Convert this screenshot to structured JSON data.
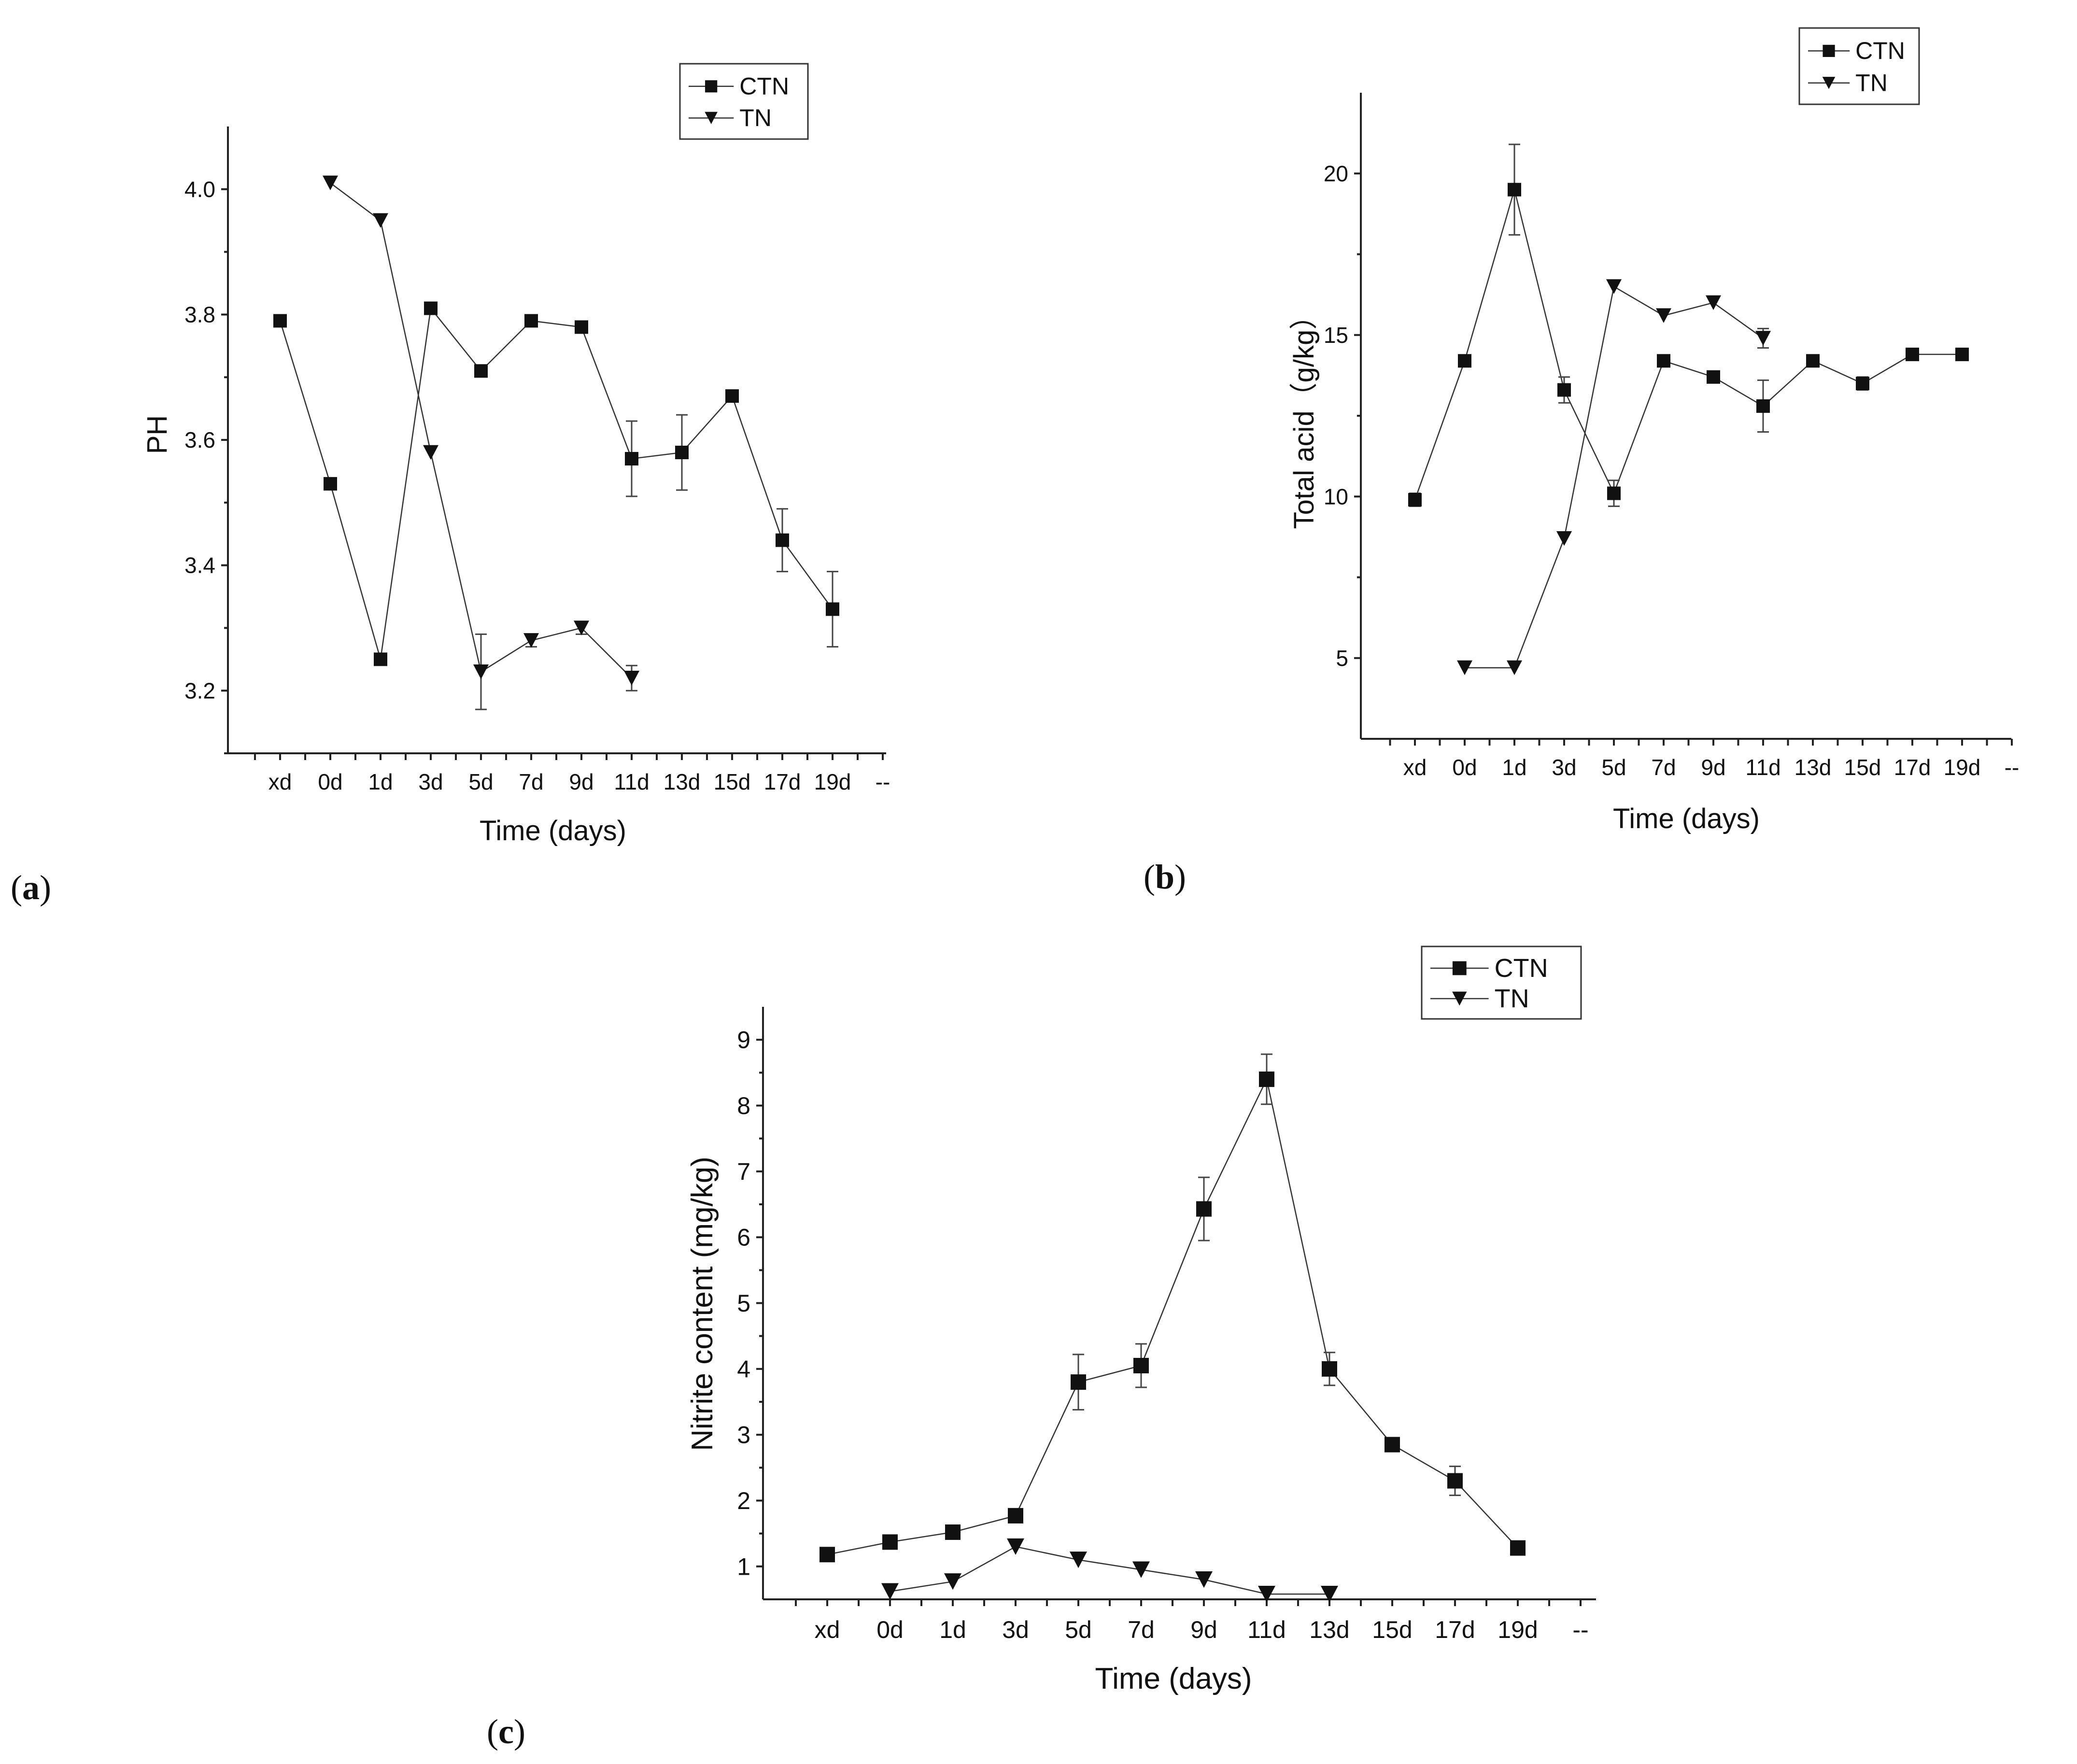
{
  "chart_data": [
    {
      "type": "line",
      "panel_label": "(a)",
      "panel_letter": "a",
      "xlabel": "Time (days)",
      "ylabel": "PH",
      "categories": [
        "xd",
        "0d",
        "1d",
        "3d",
        "5d",
        "7d",
        "9d",
        "11d",
        "13d",
        "15d",
        "17d",
        "19d",
        "--"
      ],
      "yticks": [
        "3.2",
        "3.4",
        "3.6",
        "3.8",
        "4.0"
      ],
      "ylim": [
        3.1,
        4.1
      ],
      "legend": [
        "CTN",
        "TN"
      ],
      "legend_position": "top-right",
      "series": [
        {
          "name": "CTN",
          "marker": "square",
          "values": [
            3.79,
            3.53,
            3.25,
            3.81,
            3.71,
            3.79,
            3.78,
            3.57,
            3.58,
            3.67,
            3.44,
            3.33,
            null
          ],
          "errors": [
            0,
            0,
            0,
            0,
            0,
            0,
            0,
            0.06,
            0.06,
            0,
            0.05,
            0.06,
            null
          ]
        },
        {
          "name": "TN",
          "marker": "triangle-down",
          "values": [
            null,
            4.01,
            3.95,
            3.58,
            3.23,
            3.28,
            3.3,
            3.22,
            null,
            null,
            null,
            null,
            null
          ],
          "errors": [
            null,
            0,
            0,
            0,
            0.06,
            0.01,
            0.01,
            0.02,
            null,
            null,
            null,
            null,
            null
          ]
        }
      ]
    },
    {
      "type": "line",
      "panel_label": "(b)",
      "panel_letter": "b",
      "xlabel": "Time (days)",
      "ylabel": "Total acid（g/kg）",
      "categories": [
        "xd",
        "0d",
        "1d",
        "3d",
        "5d",
        "7d",
        "9d",
        "11d",
        "13d",
        "15d",
        "17d",
        "19d",
        "--"
      ],
      "yticks": [
        "5",
        "10",
        "15",
        "20"
      ],
      "ylim": [
        2.5,
        22.5
      ],
      "legend": [
        "CTN",
        "TN"
      ],
      "legend_position": "top-right",
      "series": [
        {
          "name": "CTN",
          "marker": "square",
          "values": [
            9.9,
            14.2,
            19.5,
            13.3,
            10.1,
            14.2,
            13.7,
            12.8,
            14.2,
            13.5,
            14.4,
            14.4,
            null
          ],
          "errors": [
            0.2,
            0,
            1.4,
            0.4,
            0.4,
            0,
            0,
            0.8,
            0,
            0.2,
            0,
            0,
            null
          ]
        },
        {
          "name": "TN",
          "marker": "triangle-down",
          "values": [
            null,
            4.7,
            4.7,
            8.7,
            16.5,
            15.6,
            16.0,
            14.9,
            null,
            null,
            null,
            null,
            null
          ],
          "errors": [
            null,
            0,
            0,
            0,
            0,
            0,
            0,
            0.3,
            null,
            null,
            null,
            null,
            null
          ]
        }
      ]
    },
    {
      "type": "line",
      "panel_label": "(c)",
      "panel_letter": "c",
      "xlabel": "Time (days)",
      "ylabel": "Nitrite content (mg/kg)",
      "categories": [
        "xd",
        "0d",
        "1d",
        "3d",
        "5d",
        "7d",
        "9d",
        "11d",
        "13d",
        "15d",
        "17d",
        "19d",
        "--"
      ],
      "yticks": [
        "1",
        "2",
        "3",
        "4",
        "5",
        "6",
        "7",
        "8",
        "9"
      ],
      "ylim": [
        0.5,
        9.5
      ],
      "legend": [
        "CTN",
        "TN"
      ],
      "legend_position": "top-right",
      "series": [
        {
          "name": "CTN",
          "marker": "square",
          "values": [
            1.18,
            1.37,
            1.52,
            1.77,
            3.8,
            4.05,
            6.43,
            8.4,
            4.0,
            2.85,
            2.3,
            1.28,
            null
          ],
          "errors": [
            0,
            0,
            0,
            0,
            0.42,
            0.33,
            0.48,
            0.38,
            0.25,
            0,
            0.22,
            0,
            null
          ]
        },
        {
          "name": "TN",
          "marker": "triangle-down",
          "values": [
            null,
            0.62,
            0.77,
            1.3,
            1.1,
            0.95,
            0.8,
            0.58,
            0.58,
            null,
            null,
            null,
            null
          ],
          "errors": [
            null,
            0,
            0,
            0,
            0,
            0,
            0,
            0,
            0,
            null,
            null,
            null,
            null
          ]
        }
      ]
    }
  ]
}
